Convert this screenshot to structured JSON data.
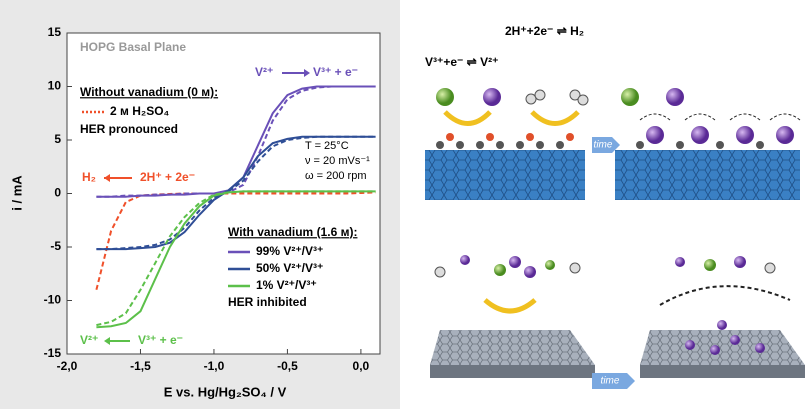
{
  "chart_data": {
    "type": "line",
    "xlabel": "E vs. Hg/Hg₂SO₄ / V",
    "ylabel": "i / mA",
    "x": [
      -1.8,
      -1.7,
      -1.6,
      -1.5,
      -1.4,
      -1.3,
      -1.2,
      -1.1,
      -1.0,
      -0.9,
      -0.8,
      -0.7,
      -0.6,
      -0.5,
      -0.4,
      -0.3,
      -0.2,
      -0.1,
      0.0,
      0.1
    ],
    "series": [
      {
        "name": "2 м H₂SO₄",
        "color": "#f0502a",
        "dash": true,
        "values": [
          -9.0,
          -3.5,
          -0.8,
          -0.2,
          -0.1,
          -0.05,
          0,
          0,
          0,
          0,
          0,
          0,
          0,
          0,
          0,
          0,
          0,
          0,
          0.05,
          0.1
        ]
      },
      {
        "name": "99% V²⁺/V³⁺",
        "color": "#6a50b8",
        "dash": false,
        "values": [
          -0.3,
          -0.3,
          -0.3,
          -0.2,
          -0.2,
          -0.1,
          -0.1,
          0,
          0,
          0.3,
          1.5,
          4.5,
          7.5,
          9.2,
          9.8,
          10,
          10,
          10,
          10,
          10
        ]
      },
      {
        "color": "#6a50b8",
        "dash": true,
        "values": [
          -0.3,
          -0.3,
          -0.2,
          -0.2,
          -0.1,
          -0.1,
          0,
          0,
          0,
          0.1,
          0.8,
          3.5,
          6.8,
          8.8,
          9.6,
          9.9,
          10,
          10,
          10,
          10
        ]
      },
      {
        "name": "50% V²⁺/V³⁺",
        "color": "#2f4e96",
        "dash": false,
        "values": [
          -5.2,
          -5.2,
          -5.2,
          -5.1,
          -5.0,
          -4.6,
          -3.6,
          -2.0,
          -0.6,
          0.3,
          1.5,
          3.5,
          4.7,
          5.1,
          5.3,
          5.3,
          5.3,
          5.3,
          5.3,
          5.3
        ]
      },
      {
        "color": "#2f4e96",
        "dash": true,
        "values": [
          -5.2,
          -5.2,
          -5.1,
          -5.0,
          -4.8,
          -4.3,
          -3.2,
          -1.6,
          -0.4,
          0.2,
          1.2,
          3.0,
          4.4,
          5.0,
          5.2,
          5.3,
          5.3,
          5.3,
          5.3,
          5.3
        ]
      },
      {
        "name": "1%   V²⁺/V³⁺",
        "color": "#5cc04a",
        "dash": false,
        "values": [
          -12.5,
          -12.4,
          -12.1,
          -11.0,
          -8.0,
          -5.0,
          -2.8,
          -1.2,
          -0.2,
          0.1,
          0.2,
          0.2,
          0.2,
          0.2,
          0.2,
          0.2,
          0.2,
          0.2,
          0.2,
          0.2
        ]
      },
      {
        "color": "#5cc04a",
        "dash": true,
        "values": [
          -12.3,
          -12.0,
          -11.2,
          -9.0,
          -6.5,
          -4.0,
          -2.2,
          -0.9,
          -0.1,
          0.1,
          0.2,
          0.2,
          0.2,
          0.2,
          0.2,
          0.2,
          0.2,
          0.2,
          0.2,
          0.2
        ]
      }
    ],
    "xlim": [
      -2.0,
      0.13
    ],
    "ylim": [
      -15,
      15
    ],
    "xticks": [
      {
        "value": -2.0,
        "label": "-2,0"
      },
      {
        "value": -1.5,
        "label": "-1,5"
      },
      {
        "value": -1.0,
        "label": "-1,0"
      },
      {
        "value": -0.5,
        "label": "-0,5"
      },
      {
        "value": 0.0,
        "label": "0,0"
      }
    ],
    "yticks": [
      -15,
      -10,
      -5,
      0,
      5,
      10,
      15
    ],
    "annotations": [
      "HOPG Basal Plane",
      "Without vanadium (0 м):",
      "HER pronounced",
      "T = 25°C",
      "ν = 20 mVs⁻¹",
      "ω = 200 rpm",
      "H₂",
      "2H⁺ + 2e⁻",
      "V²⁺",
      "V³⁺ + e⁻",
      "With vanadium (1.6 м):",
      "HER inhibited",
      "V²⁺",
      "V³⁺ + e⁻"
    ]
  },
  "schematic": {
    "reaction_h2": "2H⁺+2e⁻ ⇌ H₂",
    "reaction_v": "V³⁺+e⁻ ⇌ V²⁺",
    "time_top": "time",
    "time_bottom": "time"
  }
}
